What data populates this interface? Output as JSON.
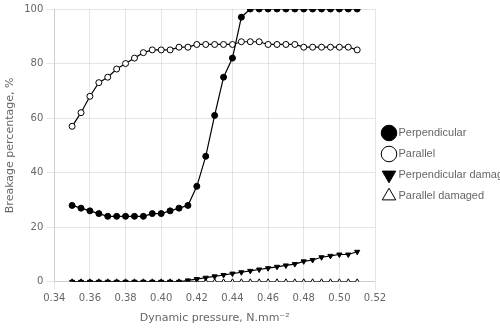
{
  "chart_data": {
    "type": "line",
    "xlabel": "Dynamic pressure, N.mm⁻²",
    "ylabel": "Breakage percentage, %",
    "x": [
      0.35,
      0.355,
      0.36,
      0.365,
      0.37,
      0.375,
      0.38,
      0.385,
      0.39,
      0.395,
      0.4,
      0.405,
      0.41,
      0.415,
      0.42,
      0.425,
      0.43,
      0.435,
      0.44,
      0.445,
      0.45,
      0.455,
      0.46,
      0.465,
      0.47,
      0.475,
      0.48,
      0.485,
      0.49,
      0.495,
      0.5,
      0.505,
      0.51
    ],
    "series": [
      {
        "name": "Perpendicular",
        "color": "#000000",
        "marker": "circle",
        "values": [
          28,
          27,
          26,
          25,
          24,
          24,
          24,
          24,
          24,
          25,
          25,
          26,
          27,
          28,
          35,
          46,
          61,
          75,
          82,
          97,
          100,
          100,
          100,
          100,
          100,
          100,
          100,
          100,
          100,
          100,
          100,
          100,
          100
        ]
      },
      {
        "name": "Parallel",
        "color": "#000000",
        "marker": "open_circle",
        "values": [
          57,
          62,
          68,
          73,
          75,
          78,
          80,
          82,
          84,
          85,
          85,
          85,
          86,
          86,
          87,
          87,
          87,
          87,
          87,
          88,
          88,
          88,
          87,
          87,
          87,
          87,
          86,
          86,
          86,
          86,
          86,
          86,
          85
        ]
      },
      {
        "name": "Perpendicular damaged",
        "color": "#000000",
        "marker": "triangle_down",
        "values": [
          0,
          0,
          0,
          0,
          0,
          0,
          0,
          0,
          0,
          0,
          0,
          0,
          0,
          0.5,
          1,
          1.5,
          2,
          2.5,
          3,
          3.5,
          4,
          4.5,
          5,
          5.5,
          6,
          6.5,
          7.5,
          8,
          9,
          9.5,
          10,
          10,
          11
        ]
      },
      {
        "name": "Parallel damaged",
        "color": "#000000",
        "marker": "open_triangle_up",
        "values": [
          0,
          0,
          0,
          0,
          0,
          0,
          0,
          0,
          0,
          0,
          0,
          0,
          0,
          0,
          0,
          0,
          0,
          0,
          0,
          0,
          0,
          0,
          0,
          0,
          0,
          0,
          0,
          0,
          0,
          0,
          0,
          0,
          0
        ]
      }
    ],
    "xlim": [
      0.34,
      0.52
    ],
    "ylim": [
      0,
      100
    ],
    "xticks": [
      0.34,
      0.36,
      0.38,
      {
        "value": 0.4,
        "label": "0.40"
      },
      0.42,
      0.44,
      0.46,
      0.48,
      {
        "value": 0.5,
        "label": "0.50"
      },
      0.52
    ],
    "yticks": [
      0,
      20,
      40,
      60,
      80,
      100
    ],
    "grid": true,
    "legend": "right"
  }
}
